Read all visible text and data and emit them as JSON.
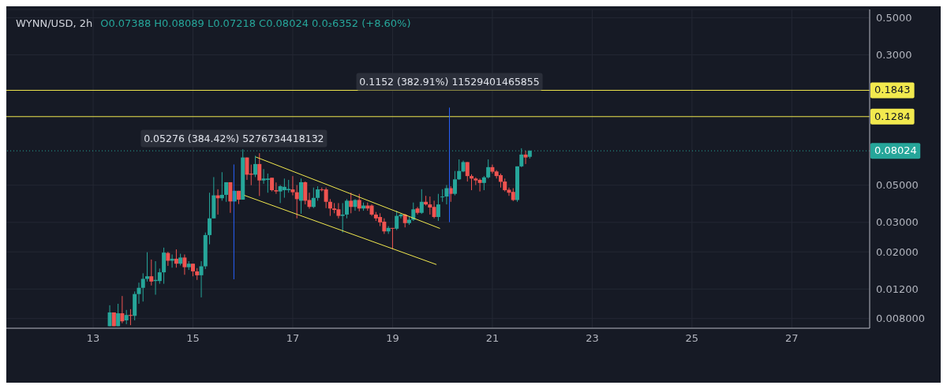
{
  "chart_data": {
    "type": "candlestick",
    "title": "WYNN/USD, 2h",
    "subtitle": "O0.07388  H0.08089  L0.07218  C0.08024  0.0₂6352 (+8.60%)",
    "x": [
      13.333,
      13.417,
      13.5,
      13.583,
      13.667,
      13.75,
      13.833,
      13.917,
      14,
      14.083,
      14.167,
      14.25,
      14.333,
      14.417,
      14.5,
      14.583,
      14.667,
      14.75,
      14.833,
      14.917,
      15,
      15.083,
      15.167,
      15.25,
      15.333,
      15.417,
      15.5,
      15.583,
      15.667,
      15.75,
      15.833,
      15.917,
      16,
      16.083,
      16.167,
      16.25,
      16.333,
      16.417,
      16.5,
      16.583,
      16.667,
      16.75,
      16.833,
      16.917,
      17,
      17.083,
      17.167,
      17.25,
      17.333,
      17.417,
      17.5,
      17.583,
      17.667,
      17.75,
      17.833,
      17.917,
      18,
      18.083,
      18.167,
      18.25,
      18.333,
      18.417,
      18.5,
      18.583,
      18.667,
      18.75,
      18.833,
      18.917,
      19,
      19.083,
      19.167,
      19.25,
      19.333,
      19.417,
      19.5,
      19.583,
      19.667,
      19.75,
      19.833,
      19.917,
      20,
      20.083,
      20.167,
      20.25,
      20.333,
      20.417,
      20.5,
      20.583,
      20.667,
      20.75,
      20.833,
      20.917,
      21,
      21.083,
      21.167,
      21.25,
      21.333,
      21.417,
      21.5,
      21.583,
      21.667,
      21.75
    ],
    "ohlc": [
      [
        0.0072,
        0.0096,
        0.0072,
        0.0087
      ],
      [
        0.0087,
        0.0087,
        0.0072,
        0.0072
      ],
      [
        0.0072,
        0.0098,
        0.0072,
        0.0086
      ],
      [
        0.0086,
        0.0109,
        0.0075,
        0.0077
      ],
      [
        0.0078,
        0.009,
        0.0074,
        0.0084
      ],
      [
        0.0084,
        0.0091,
        0.0073,
        0.0083
      ],
      [
        0.0083,
        0.0116,
        0.0078,
        0.0112
      ],
      [
        0.0112,
        0.0131,
        0.0098,
        0.0122
      ],
      [
        0.0122,
        0.0149,
        0.0101,
        0.0138
      ],
      [
        0.0138,
        0.0199,
        0.0133,
        0.0143
      ],
      [
        0.0143,
        0.018,
        0.0126,
        0.0133
      ],
      [
        0.0134,
        0.0176,
        0.0111,
        0.0136
      ],
      [
        0.0134,
        0.0159,
        0.0129,
        0.0151
      ],
      [
        0.0151,
        0.0212,
        0.0129,
        0.0198
      ],
      [
        0.0197,
        0.02,
        0.0165,
        0.0177
      ],
      [
        0.0177,
        0.0193,
        0.0161,
        0.0182
      ],
      [
        0.0182,
        0.0207,
        0.0161,
        0.017
      ],
      [
        0.017,
        0.0195,
        0.0166,
        0.0185
      ],
      [
        0.0185,
        0.0193,
        0.0146,
        0.0162
      ],
      [
        0.0162,
        0.0176,
        0.0156,
        0.017
      ],
      [
        0.017,
        0.017,
        0.0143,
        0.0153
      ],
      [
        0.0153,
        0.016,
        0.0136,
        0.0145
      ],
      [
        0.0145,
        0.0176,
        0.0107,
        0.0164
      ],
      [
        0.0164,
        0.0261,
        0.0158,
        0.0252
      ],
      [
        0.0252,
        0.0451,
        0.0222,
        0.0317
      ],
      [
        0.0317,
        0.0559,
        0.0317,
        0.0435
      ],
      [
        0.0435,
        0.0473,
        0.0334,
        0.0418
      ],
      [
        0.0418,
        0.0598,
        0.0404,
        0.0438
      ],
      [
        0.0438,
        0.0521,
        0.0398,
        0.0521
      ],
      [
        0.0521,
        0.0521,
        0.0342,
        0.04
      ],
      [
        0.04,
        0.0463,
        0.04,
        0.0463
      ],
      [
        0.0463,
        0.0463,
        0.0386,
        0.041
      ],
      [
        0.041,
        0.0819,
        0.041,
        0.0732
      ],
      [
        0.0732,
        0.0732,
        0.0538,
        0.0578
      ],
      [
        0.0587,
        0.0664,
        0.05,
        0.0578
      ],
      [
        0.0578,
        0.075,
        0.0559,
        0.0669
      ],
      [
        0.0669,
        0.0776,
        0.0431,
        0.0534
      ],
      [
        0.0534,
        0.0624,
        0.051,
        0.0548
      ],
      [
        0.0538,
        0.0587,
        0.0451,
        0.0548
      ],
      [
        0.0554,
        0.0554,
        0.0459,
        0.0467
      ],
      [
        0.0467,
        0.0519,
        0.0444,
        0.0459
      ],
      [
        0.0459,
        0.0501,
        0.0391,
        0.0493
      ],
      [
        0.0467,
        0.0548,
        0.0421,
        0.0489
      ],
      [
        0.0467,
        0.0538,
        0.0451,
        0.0475
      ],
      [
        0.0472,
        0.0567,
        0.0435,
        0.0454
      ],
      [
        0.0454,
        0.0501,
        0.0317,
        0.0413
      ],
      [
        0.0404,
        0.0548,
        0.0338,
        0.0521
      ],
      [
        0.0521,
        0.0526,
        0.0384,
        0.0404
      ],
      [
        0.0408,
        0.0451,
        0.0362,
        0.0371
      ],
      [
        0.0371,
        0.0484,
        0.0365,
        0.042
      ],
      [
        0.042,
        0.0493,
        0.0404,
        0.0472
      ],
      [
        0.0472,
        0.0484,
        0.0459,
        0.0467
      ],
      [
        0.0472,
        0.0484,
        0.0365,
        0.0398
      ],
      [
        0.0398,
        0.0413,
        0.0328,
        0.0363
      ],
      [
        0.0363,
        0.0391,
        0.034,
        0.0356
      ],
      [
        0.0359,
        0.0391,
        0.0317,
        0.0328
      ],
      [
        0.0328,
        0.0391,
        0.0261,
        0.0334
      ],
      [
        0.0334,
        0.0413,
        0.0317,
        0.0404
      ],
      [
        0.0404,
        0.0451,
        0.034,
        0.0371
      ],
      [
        0.0371,
        0.0413,
        0.0352,
        0.0408
      ],
      [
        0.0408,
        0.0444,
        0.0349,
        0.0363
      ],
      [
        0.0363,
        0.0394,
        0.0352,
        0.0378
      ],
      [
        0.0378,
        0.0394,
        0.0352,
        0.0363
      ],
      [
        0.0378,
        0.0384,
        0.0328,
        0.0334
      ],
      [
        0.0334,
        0.0346,
        0.0306,
        0.0317
      ],
      [
        0.0323,
        0.034,
        0.0285,
        0.03
      ],
      [
        0.0303,
        0.0317,
        0.0256,
        0.0265
      ],
      [
        0.0265,
        0.0285,
        0.0256,
        0.0278
      ],
      [
        0.0278,
        0.0278,
        0.0207,
        0.0275
      ],
      [
        0.0275,
        0.0352,
        0.027,
        0.0328
      ],
      [
        0.0326,
        0.034,
        0.0317,
        0.0334
      ],
      [
        0.0334,
        0.0337,
        0.028,
        0.0297
      ],
      [
        0.0297,
        0.0323,
        0.029,
        0.0311
      ],
      [
        0.0311,
        0.0394,
        0.0306,
        0.0359
      ],
      [
        0.0363,
        0.0371,
        0.0334,
        0.0342
      ],
      [
        0.0342,
        0.0473,
        0.0337,
        0.0398
      ],
      [
        0.0398,
        0.0432,
        0.0378,
        0.0384
      ],
      [
        0.0384,
        0.0428,
        0.0334,
        0.0368
      ],
      [
        0.0371,
        0.0404,
        0.0317,
        0.0323
      ],
      [
        0.0323,
        0.0444,
        0.0306,
        0.0384
      ],
      [
        0.0424,
        0.0473,
        0.0398,
        0.0428
      ],
      [
        0.0428,
        0.0501,
        0.0384,
        0.048
      ],
      [
        0.048,
        0.0493,
        0.0398,
        0.0444
      ],
      [
        0.0444,
        0.0608,
        0.0435,
        0.0542
      ],
      [
        0.0542,
        0.0713,
        0.0538,
        0.0608
      ],
      [
        0.0604,
        0.0701,
        0.0598,
        0.0687
      ],
      [
        0.0687,
        0.0687,
        0.0526,
        0.0567
      ],
      [
        0.0567,
        0.0581,
        0.0467,
        0.0548
      ],
      [
        0.0548,
        0.0557,
        0.0501,
        0.0534
      ],
      [
        0.0538,
        0.0548,
        0.0459,
        0.0516
      ],
      [
        0.0516,
        0.0567,
        0.0467,
        0.0557
      ],
      [
        0.0557,
        0.0713,
        0.0548,
        0.0641
      ],
      [
        0.0641,
        0.0664,
        0.0587,
        0.0602
      ],
      [
        0.0604,
        0.0615,
        0.0548,
        0.0567
      ],
      [
        0.0574,
        0.0587,
        0.0484,
        0.0524
      ],
      [
        0.0526,
        0.0548,
        0.0459,
        0.0467
      ],
      [
        0.047,
        0.0484,
        0.0432,
        0.0451
      ],
      [
        0.0456,
        0.048,
        0.0402,
        0.0408
      ],
      [
        0.0408,
        0.0648,
        0.0398,
        0.0648
      ],
      [
        0.0648,
        0.0831,
        0.0641,
        0.0762
      ],
      [
        0.0762,
        0.0805,
        0.0669,
        0.0732
      ],
      [
        0.07388,
        0.08089,
        0.07218,
        0.08024
      ]
    ],
    "colors": [
      "#26a69a",
      "#ef5350",
      "#26a69a",
      "#ef5350",
      "#26a69a",
      "#ef5350",
      "#26a69a",
      "#26a69a",
      "#26a69a",
      "#26a69a",
      "#ef5350",
      "#26a69a",
      "#26a69a",
      "#26a69a",
      "#ef5350",
      "#26a69a",
      "#ef5350",
      "#26a69a",
      "#ef5350",
      "#26a69a",
      "#ef5350",
      "#ef5350",
      "#26a69a",
      "#26a69a",
      "#26a69a",
      "#26a69a",
      "#ef5350",
      "#26a69a",
      "#26a69a",
      "#ef5350",
      "#26a69a",
      "#ef5350",
      "#26a69a",
      "#ef5350",
      "#ef5350",
      "#26a69a",
      "#ef5350",
      "#26a69a",
      "#26a69a",
      "#ef5350",
      "#ef5350",
      "#26a69a",
      "#26a69a",
      "#26a69a",
      "#ef5350",
      "#ef5350",
      "#26a69a",
      "#ef5350",
      "#ef5350",
      "#26a69a",
      "#26a69a",
      "#ef5350",
      "#ef5350",
      "#ef5350",
      "#ef5350",
      "#ef5350",
      "#26a69a",
      "#26a69a",
      "#ef5350",
      "#26a69a",
      "#ef5350",
      "#26a69a",
      "#ef5350",
      "#ef5350",
      "#ef5350",
      "#ef5350",
      "#ef5350",
      "#26a69a",
      "#ef5350",
      "#26a69a",
      "#26a69a",
      "#ef5350",
      "#26a69a",
      "#26a69a",
      "#ef5350",
      "#26a69a",
      "#ef5350",
      "#ef5350",
      "#ef5350",
      "#26a69a",
      "#26a69a",
      "#26a69a",
      "#ef5350",
      "#26a69a",
      "#26a69a",
      "#26a69a",
      "#ef5350",
      "#ef5350",
      "#ef5350",
      "#ef5350",
      "#26a69a",
      "#26a69a",
      "#ef5350",
      "#ef5350",
      "#ef5350",
      "#ef5350",
      "#ef5350",
      "#ef5350",
      "#26a69a",
      "#26a69a",
      "#ef5350",
      "#26a69a"
    ],
    "series": [
      {
        "type": "line",
        "color": "#f2e94e",
        "x": [
          16.26,
          19.95
        ],
        "values": [
          0.0737,
          0.0276
        ]
      },
      {
        "type": "line",
        "color": "#f2e94e",
        "x": [
          16.03,
          19.88
        ],
        "values": [
          0.0435,
          0.0168
        ]
      },
      {
        "type": "line",
        "color": "#2962ff",
        "x": [
          15.82,
          15.82
        ],
        "values": [
          0.01372,
          0.0665
        ]
      },
      {
        "type": "line",
        "color": "#2962ff",
        "x": [
          20.14,
          20.14
        ],
        "values": [
          0.03009,
          0.1453
        ]
      }
    ],
    "log": "y",
    "grid": true,
    "xlim": [
      11.26,
      28.56
    ],
    "xticks": [
      13,
      15,
      17,
      19,
      21,
      23,
      25,
      27
    ],
    "ylim": [
      0.007,
      0.56
    ],
    "yticks": [
      {
        "value": 0.008,
        "label": "0.008000"
      },
      {
        "value": 0.012,
        "label": "0.01200"
      },
      {
        "value": 0.02,
        "label": "0.02000"
      },
      {
        "value": 0.03,
        "label": "0.03000"
      },
      {
        "value": 0.05,
        "label": "0.05000"
      },
      {
        "value": 0.3,
        "label": "0.3000"
      },
      {
        "value": 0.5,
        "label": "0.5000"
      }
    ],
    "ref_lines": [
      {
        "axis": "y",
        "value": 0.1843,
        "label": "0.1843",
        "color": "#f2e94e"
      },
      {
        "axis": "y",
        "value": 0.1284,
        "label": "0.1284",
        "color": "#f2e94e"
      },
      {
        "axis": "y",
        "value": 0.08024,
        "label": "0.08024",
        "color": "#26a69a",
        "line_style": "dotted"
      }
    ],
    "annotations": [
      {
        "text": "0.05276 (384.42%) 5276734418132",
        "x": 15.82,
        "y": 0.0665
      },
      {
        "text": "0.1152 (382.91%) 11529401465855",
        "x": 20.14,
        "y": 0.1453
      }
    ]
  }
}
